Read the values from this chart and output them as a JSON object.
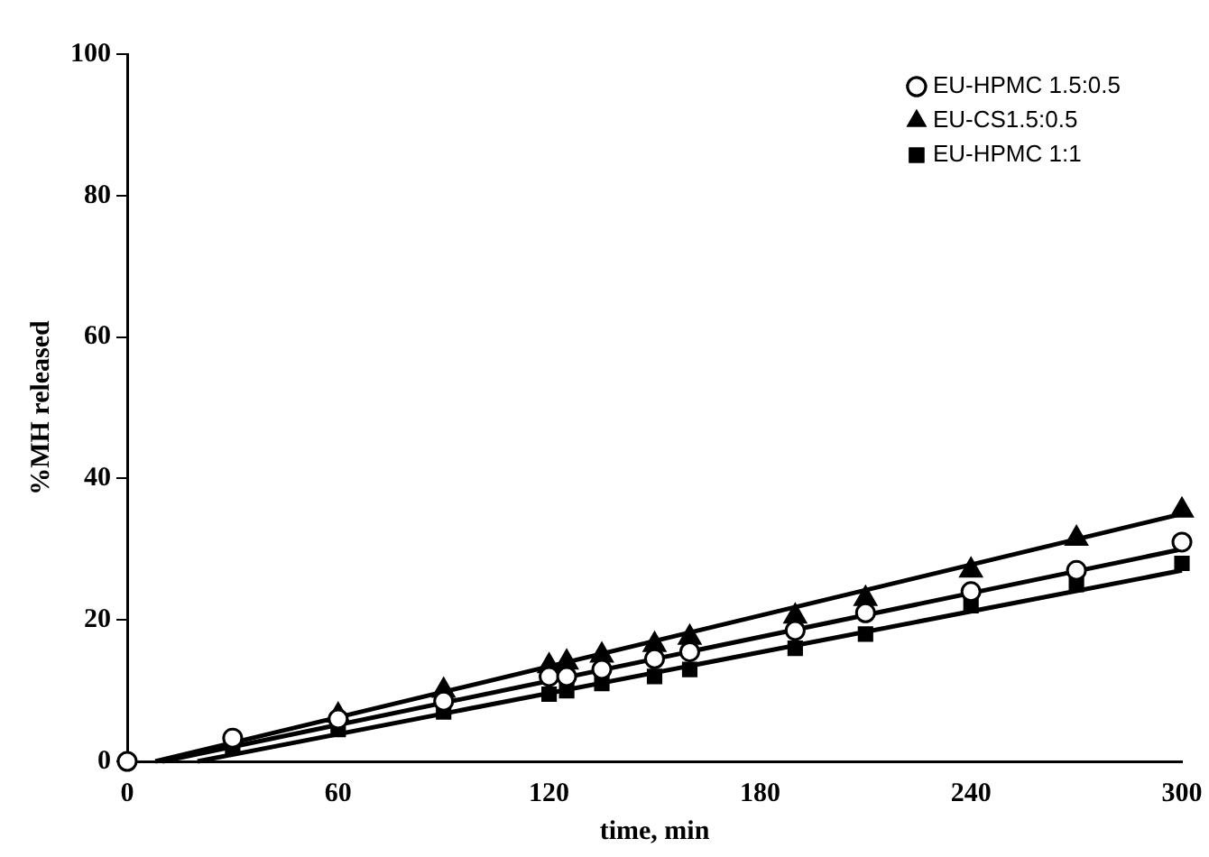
{
  "chart_data": {
    "type": "scatter",
    "xlabel": "time, min",
    "ylabel": "%MH released",
    "xlim": [
      0,
      300
    ],
    "xticks": [
      0,
      60,
      120,
      180,
      240,
      300
    ],
    "ylim": [
      0,
      100
    ],
    "yticks": [
      0,
      20,
      40,
      60,
      80,
      100
    ],
    "grid": false,
    "legend": "top right",
    "x": [
      0,
      30,
      60,
      90,
      120,
      125,
      135,
      150,
      160,
      190,
      210,
      240,
      270,
      300
    ],
    "series": [
      {
        "name": "EU-HPMC 1.5:0.5",
        "color": "#000000",
        "marker": "circle",
        "values": [
          0,
          3.3,
          6,
          8.5,
          12,
          12,
          13,
          14.5,
          15.5,
          18.5,
          21,
          24,
          27,
          31
        ]
      },
      {
        "name": "EU-CS1.5:0.5",
        "color": "#000000",
        "marker": "triangle",
        "values": [
          null,
          null,
          6.5,
          10,
          13.5,
          14,
          15,
          16.5,
          17.5,
          20.5,
          23,
          27,
          31.5,
          35.5
        ]
      },
      {
        "name": "EU-HPMC 1:1",
        "color": "#000000",
        "marker": "square",
        "values": [
          null,
          2,
          4.5,
          7,
          9.5,
          10,
          11,
          12,
          13,
          16,
          18,
          22,
          25,
          28
        ]
      },
      {
        "type": "line",
        "color": "#000000",
        "marker": "none",
        "x": [
          10,
          300
        ],
        "values": [
          0,
          30
        ]
      },
      {
        "type": "line",
        "color": "#000000",
        "marker": "none",
        "x": [
          8,
          300
        ],
        "values": [
          0,
          35
        ]
      },
      {
        "type": "line",
        "color": "#000000",
        "marker": "none",
        "x": [
          20,
          300
        ],
        "values": [
          0,
          27
        ]
      }
    ]
  }
}
